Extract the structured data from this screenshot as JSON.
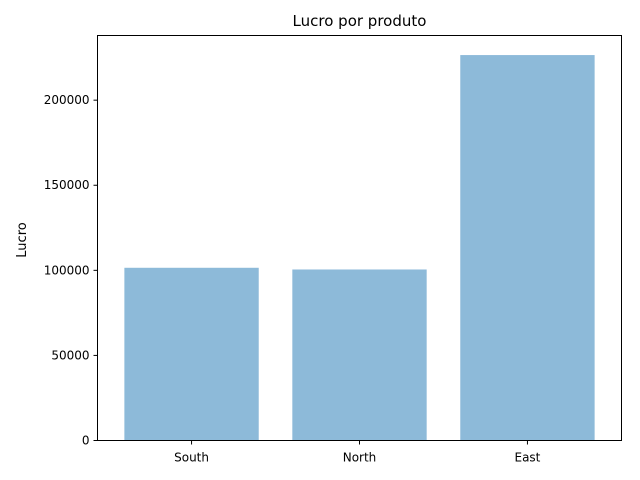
{
  "chart_data": {
    "type": "bar",
    "title": "Lucro por produto",
    "xlabel": "",
    "ylabel": "Lucro",
    "categories": [
      "South",
      "North",
      "East"
    ],
    "values": [
      101500,
      100500,
      226500
    ],
    "ylim": [
      0,
      238000
    ],
    "yticks": [
      0,
      50000,
      100000,
      150000,
      200000
    ],
    "ytick_labels": [
      "0",
      "50000",
      "100000",
      "150000",
      "200000"
    ],
    "bar_color": "#8dbad9",
    "grid": false,
    "legend": "none"
  }
}
